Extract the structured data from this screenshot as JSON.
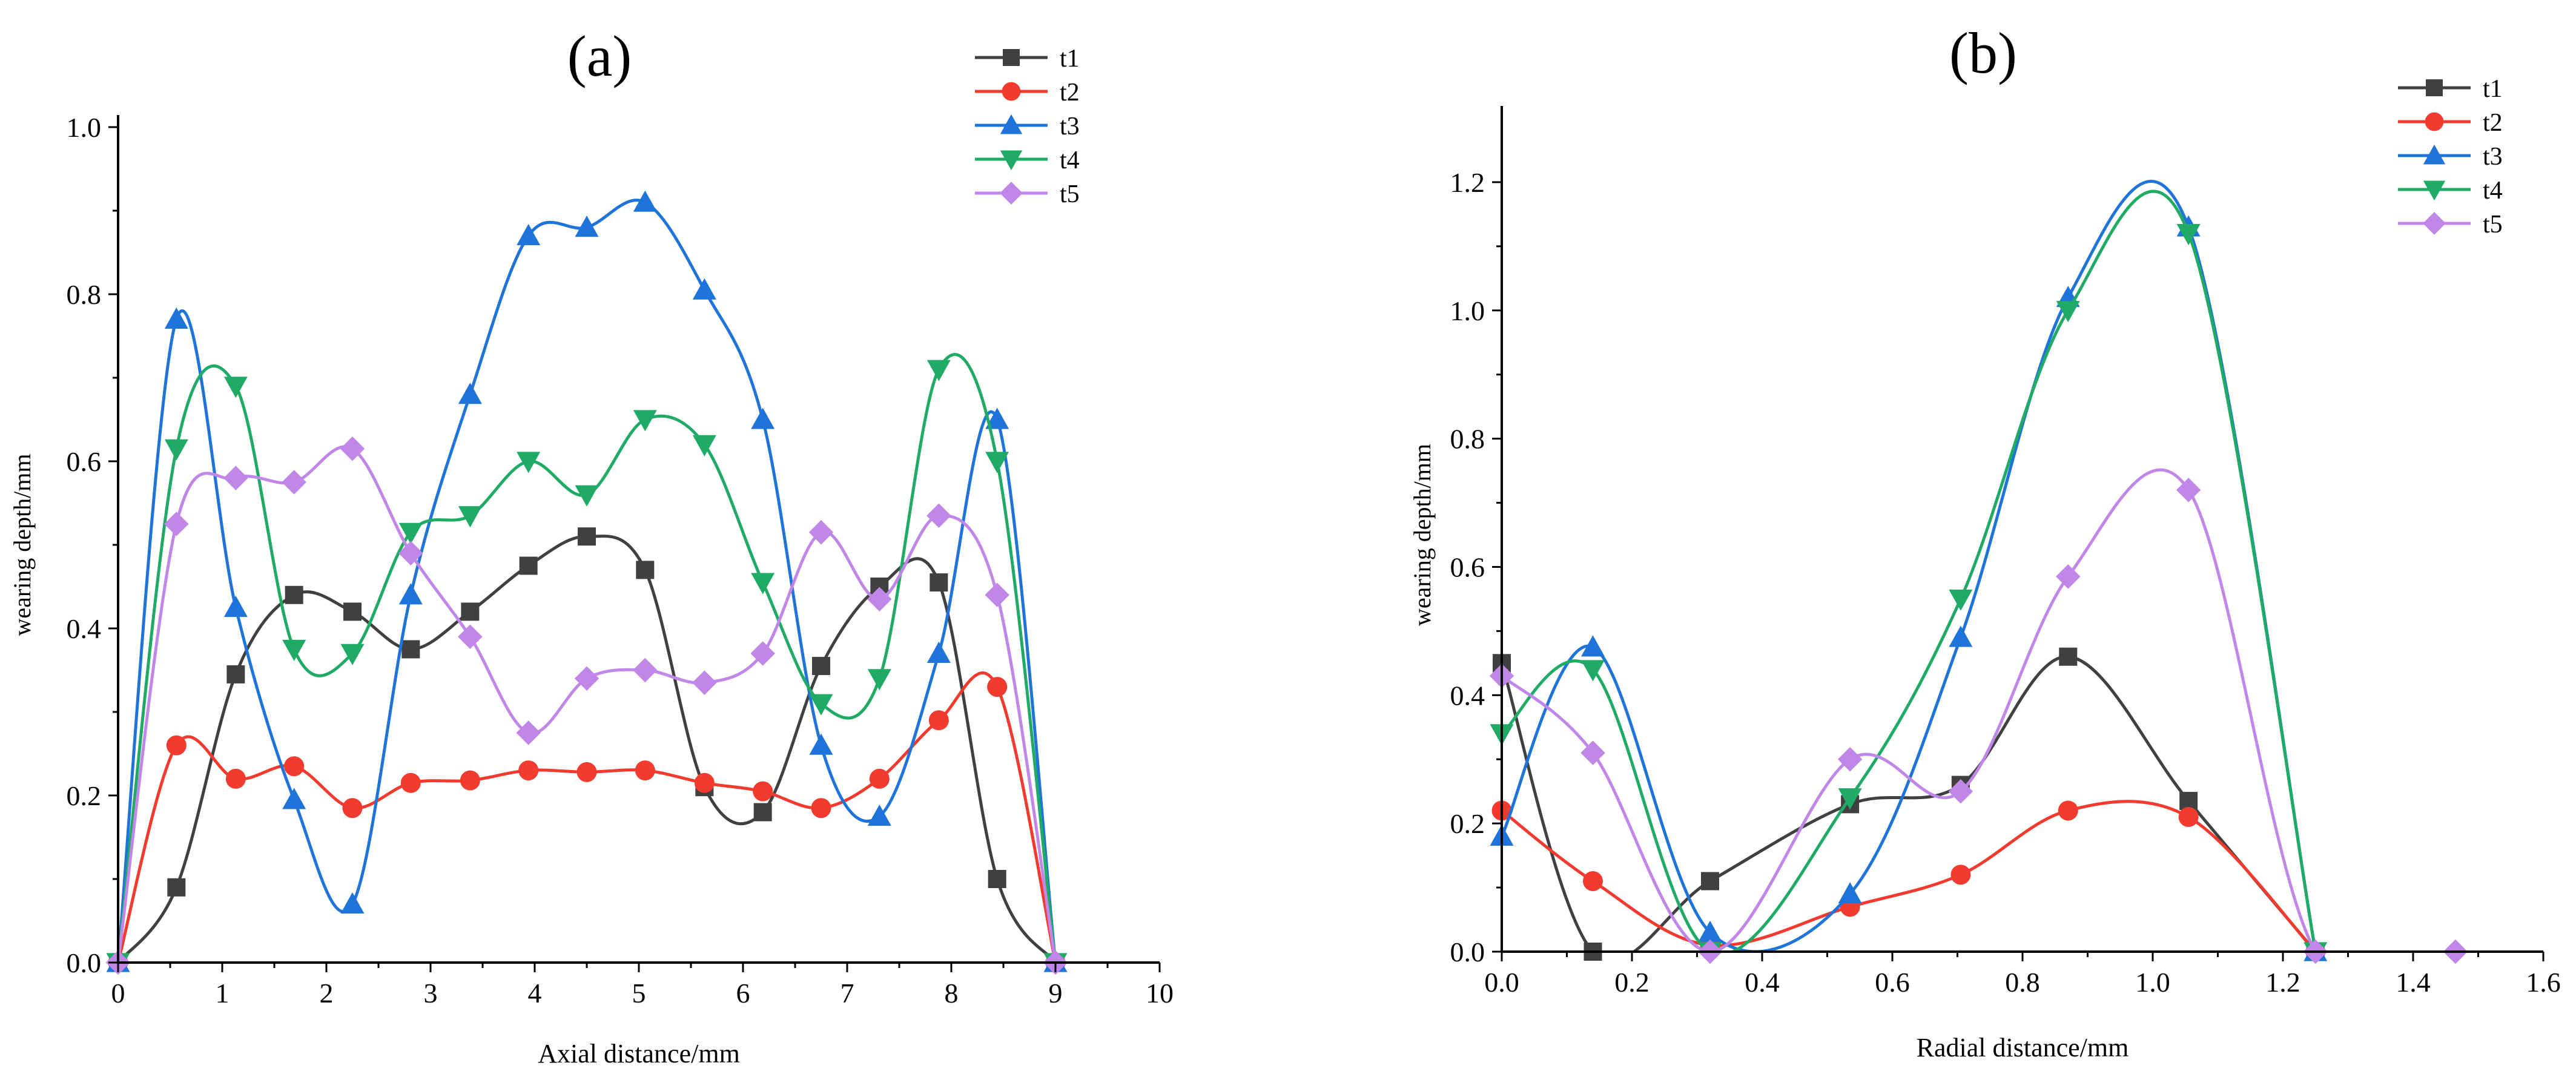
{
  "chart_data": [
    {
      "type": "line",
      "panel_label": "(a)",
      "xlabel": "Axial distance/mm",
      "ylabel": "wearing depth/mm",
      "xlim": [
        0,
        10
      ],
      "ylim": [
        0,
        1.0
      ],
      "xticks": [
        0,
        1,
        2,
        3,
        4,
        5,
        6,
        7,
        8,
        9,
        10
      ],
      "yticks": [
        0.0,
        0.2,
        0.4,
        0.6,
        0.8,
        1.0
      ],
      "xtick_labels": [
        "0",
        "1",
        "2",
        "3",
        "4",
        "5",
        "6",
        "7",
        "8",
        "9",
        "10"
      ],
      "ytick_labels": [
        "0.0",
        "0.2",
        "0.4",
        "0.6",
        "0.8",
        "1.0"
      ],
      "legend_position": "top-right",
      "series": [
        {
          "name": "t1",
          "color": "#404040",
          "marker": "square",
          "x": [
            0,
            0.56,
            1.13,
            1.69,
            2.25,
            2.81,
            3.38,
            3.94,
            4.5,
            5.06,
            5.63,
            6.19,
            6.75,
            7.31,
            7.88,
            8.44,
            9.0
          ],
          "y": [
            0.0,
            0.09,
            0.345,
            0.44,
            0.42,
            0.375,
            0.42,
            0.475,
            0.51,
            0.47,
            0.21,
            0.18,
            0.355,
            0.45,
            0.455,
            0.1,
            0.0
          ]
        },
        {
          "name": "t2",
          "color": "#f23a2e",
          "marker": "circle",
          "x": [
            0,
            0.56,
            1.13,
            1.69,
            2.25,
            2.81,
            3.38,
            3.94,
            4.5,
            5.06,
            5.63,
            6.19,
            6.75,
            7.31,
            7.88,
            8.44,
            9.0
          ],
          "y": [
            0.0,
            0.26,
            0.22,
            0.235,
            0.185,
            0.215,
            0.218,
            0.23,
            0.228,
            0.23,
            0.215,
            0.205,
            0.185,
            0.22,
            0.29,
            0.33,
            0.0
          ]
        },
        {
          "name": "t3",
          "color": "#1e74d8",
          "marker": "triangle-up",
          "x": [
            0,
            0.56,
            1.13,
            1.69,
            2.25,
            2.81,
            3.38,
            3.94,
            4.5,
            5.06,
            5.63,
            6.19,
            6.75,
            7.31,
            7.88,
            8.44,
            9.0
          ],
          "y": [
            0.0,
            0.77,
            0.425,
            0.195,
            0.07,
            0.44,
            0.68,
            0.87,
            0.88,
            0.91,
            0.805,
            0.65,
            0.26,
            0.175,
            0.37,
            0.65,
            0.0
          ]
        },
        {
          "name": "t4",
          "color": "#1faa66",
          "marker": "triangle-down",
          "x": [
            0,
            0.56,
            1.13,
            1.69,
            2.25,
            2.81,
            3.38,
            3.94,
            4.5,
            5.06,
            5.63,
            6.19,
            6.75,
            7.31,
            7.88,
            8.44,
            9.0
          ],
          "y": [
            0.0,
            0.615,
            0.69,
            0.375,
            0.37,
            0.515,
            0.535,
            0.6,
            0.56,
            0.65,
            0.62,
            0.455,
            0.31,
            0.34,
            0.71,
            0.6,
            0.0
          ]
        },
        {
          "name": "t5",
          "color": "#c187e8",
          "marker": "diamond",
          "x": [
            0,
            0.56,
            1.13,
            1.69,
            2.25,
            2.81,
            3.38,
            3.94,
            4.5,
            5.06,
            5.63,
            6.19,
            6.75,
            7.31,
            7.88,
            8.44,
            9.0
          ],
          "y": [
            0.0,
            0.525,
            0.58,
            0.575,
            0.615,
            0.49,
            0.39,
            0.275,
            0.34,
            0.35,
            0.335,
            0.37,
            0.515,
            0.435,
            0.535,
            0.44,
            0.0
          ]
        }
      ]
    },
    {
      "type": "line",
      "panel_label": "(b)",
      "xlabel": "Radial distance/mm",
      "ylabel": "wearing depth/mm",
      "xlim": [
        0,
        1.6
      ],
      "ylim": [
        0,
        1.3
      ],
      "xticks": [
        0,
        0.2,
        0.4,
        0.6,
        0.8,
        1.0,
        1.2,
        1.4,
        1.6
      ],
      "yticks": [
        0.0,
        0.2,
        0.4,
        0.6,
        0.8,
        1.0,
        1.2
      ],
      "xtick_labels": [
        "0.0",
        "0.2",
        "0.4",
        "0.6",
        "0.8",
        "1.0",
        "1.2",
        "1.4",
        "1.6"
      ],
      "ytick_labels": [
        "0.0",
        "0.2",
        "0.4",
        "0.6",
        "0.8",
        "1.0",
        "1.2"
      ],
      "legend_position": "top-right",
      "series": [
        {
          "name": "t1",
          "color": "#404040",
          "marker": "square",
          "x": [
            0.0,
            0.14,
            0.32,
            0.535,
            0.705,
            0.87,
            1.055,
            1.25
          ],
          "y": [
            0.45,
            0.0,
            0.11,
            0.23,
            0.26,
            0.46,
            0.235,
            0.0
          ]
        },
        {
          "name": "t2",
          "color": "#f23a2e",
          "marker": "circle",
          "x": [
            0.0,
            0.14,
            0.32,
            0.535,
            0.705,
            0.87,
            1.055,
            1.25
          ],
          "y": [
            0.22,
            0.11,
            0.01,
            0.07,
            0.12,
            0.22,
            0.21,
            0.0
          ]
        },
        {
          "name": "t3",
          "color": "#1e74d8",
          "marker": "triangle-up",
          "x": [
            0.0,
            0.14,
            0.32,
            0.535,
            0.705,
            0.87,
            1.055,
            1.25
          ],
          "y": [
            0.18,
            0.475,
            0.03,
            0.09,
            0.49,
            1.02,
            1.13,
            0.0
          ]
        },
        {
          "name": "t4",
          "color": "#1faa66",
          "marker": "triangle-down",
          "x": [
            0.0,
            0.14,
            0.32,
            0.535,
            0.705,
            0.87,
            1.055,
            1.25
          ],
          "y": [
            0.34,
            0.44,
            0.0,
            0.24,
            0.55,
            1.0,
            1.12,
            0.0
          ]
        },
        {
          "name": "t5",
          "color": "#c187e8",
          "marker": "diamond",
          "x": [
            0.0,
            0.14,
            0.32,
            0.535,
            0.705,
            0.87,
            1.055,
            1.25,
            1.465
          ],
          "y": [
            0.43,
            0.31,
            0.0,
            0.3,
            0.25,
            0.585,
            0.72,
            0.0,
            0.0
          ]
        }
      ]
    }
  ]
}
